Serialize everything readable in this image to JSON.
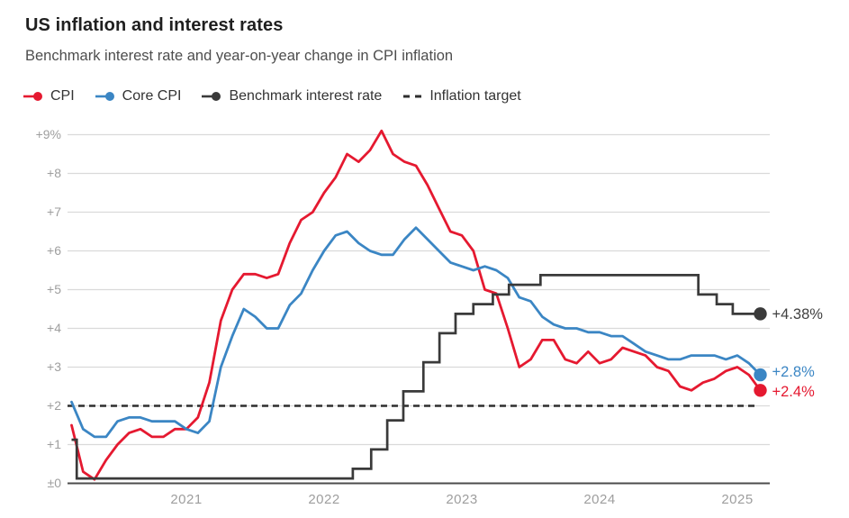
{
  "header": {
    "title": "US inflation and interest rates",
    "subtitle": "Benchmark interest rate and year-on-year change in CPI inflation"
  },
  "legend": [
    {
      "label": "CPI",
      "marker": "line-dot",
      "color": "#e51930"
    },
    {
      "label": "Core CPI",
      "marker": "line-dot",
      "color": "#3b86c4"
    },
    {
      "label": "Benchmark interest rate",
      "marker": "line-dot",
      "color": "#3a3a3a"
    },
    {
      "label": "Inflation target",
      "marker": "dashes",
      "color": "#2e2e2e"
    }
  ],
  "colors": {
    "cpi": "#e51930",
    "core_cpi": "#3b86c4",
    "benchmark": "#3a3a3a",
    "target_dash": "#2e2e2e",
    "gridline": "#dadada",
    "zero_axis": "#4c4c4c",
    "tick_text": "#9e9e9e",
    "end_label_dark": "#3f3f3f"
  },
  "chart_data": {
    "type": "line",
    "title": "US inflation and interest rates",
    "subtitle": "Benchmark interest rate and year-on-year change in CPI inflation",
    "x_start": "2020-03",
    "x_end": "2025-03",
    "x_unit": "month",
    "ylim": [
      0,
      9
    ],
    "grid": "horizontal",
    "legend_position": "top",
    "y_ticks": [
      {
        "value": 9,
        "label": "+9%"
      },
      {
        "value": 8,
        "label": "+8"
      },
      {
        "value": 7,
        "label": "+7"
      },
      {
        "value": 6,
        "label": "+6"
      },
      {
        "value": 5,
        "label": "+5"
      },
      {
        "value": 4,
        "label": "+4"
      },
      {
        "value": 3,
        "label": "+3"
      },
      {
        "value": 2,
        "label": "+2"
      },
      {
        "value": 1,
        "label": "+1"
      },
      {
        "value": 0,
        "label": "±0"
      }
    ],
    "x_ticks": [
      {
        "month_index": 10,
        "label": "2021"
      },
      {
        "month_index": 22,
        "label": "2022"
      },
      {
        "month_index": 34,
        "label": "2023"
      },
      {
        "month_index": 46,
        "label": "2024"
      },
      {
        "month_index": 58,
        "label": "2025"
      }
    ],
    "inflation_target": 2,
    "series": [
      {
        "name": "CPI",
        "kind": "line",
        "color": "#e51930",
        "end_label": "+2.4%",
        "values": [
          1.5,
          0.3,
          0.1,
          0.6,
          1.0,
          1.3,
          1.4,
          1.2,
          1.2,
          1.4,
          1.4,
          1.7,
          2.6,
          4.2,
          5.0,
          5.4,
          5.4,
          5.3,
          5.4,
          6.2,
          6.8,
          7.0,
          7.5,
          7.9,
          8.5,
          8.3,
          8.6,
          9.1,
          8.5,
          8.3,
          8.2,
          7.7,
          7.1,
          6.5,
          6.4,
          6.0,
          5.0,
          4.9,
          4.0,
          3.0,
          3.2,
          3.7,
          3.7,
          3.2,
          3.1,
          3.4,
          3.1,
          3.2,
          3.5,
          3.4,
          3.3,
          3.0,
          2.9,
          2.5,
          2.4,
          2.6,
          2.7,
          2.9,
          3.0,
          2.8,
          2.4
        ]
      },
      {
        "name": "Core CPI",
        "kind": "line",
        "color": "#3b86c4",
        "end_label": "+2.8%",
        "values": [
          2.1,
          1.4,
          1.2,
          1.2,
          1.6,
          1.7,
          1.7,
          1.6,
          1.6,
          1.6,
          1.4,
          1.3,
          1.6,
          3.0,
          3.8,
          4.5,
          4.3,
          4.0,
          4.0,
          4.6,
          4.9,
          5.5,
          6.0,
          6.4,
          6.5,
          6.2,
          6.0,
          5.9,
          5.9,
          6.3,
          6.6,
          6.3,
          6.0,
          5.7,
          5.6,
          5.5,
          5.6,
          5.5,
          5.3,
          4.8,
          4.7,
          4.3,
          4.1,
          4.0,
          4.0,
          3.9,
          3.9,
          3.8,
          3.8,
          3.6,
          3.4,
          3.3,
          3.2,
          3.2,
          3.3,
          3.3,
          3.3,
          3.2,
          3.3,
          3.1,
          2.8
        ]
      },
      {
        "name": "Benchmark interest rate",
        "kind": "step",
        "color": "#3a3a3a",
        "end_label": "+4.38%",
        "step_points": [
          {
            "month_index": 0,
            "value": 1.125
          },
          {
            "month_index": 0.45,
            "value": 0.125
          },
          {
            "month_index": 24.5,
            "value": 0.375
          },
          {
            "month_index": 26.1,
            "value": 0.875
          },
          {
            "month_index": 27.5,
            "value": 1.625
          },
          {
            "month_index": 28.9,
            "value": 2.375
          },
          {
            "month_index": 30.65,
            "value": 3.125
          },
          {
            "month_index": 32.05,
            "value": 3.875
          },
          {
            "month_index": 33.45,
            "value": 4.375
          },
          {
            "month_index": 35.0,
            "value": 4.625
          },
          {
            "month_index": 36.7,
            "value": 4.875
          },
          {
            "month_index": 38.1,
            "value": 5.125
          },
          {
            "month_index": 40.85,
            "value": 5.375
          },
          {
            "month_index": 54.6,
            "value": 4.875
          },
          {
            "month_index": 56.2,
            "value": 4.625
          },
          {
            "month_index": 57.6,
            "value": 4.375
          }
        ],
        "end_month_index": 60
      }
    ]
  }
}
